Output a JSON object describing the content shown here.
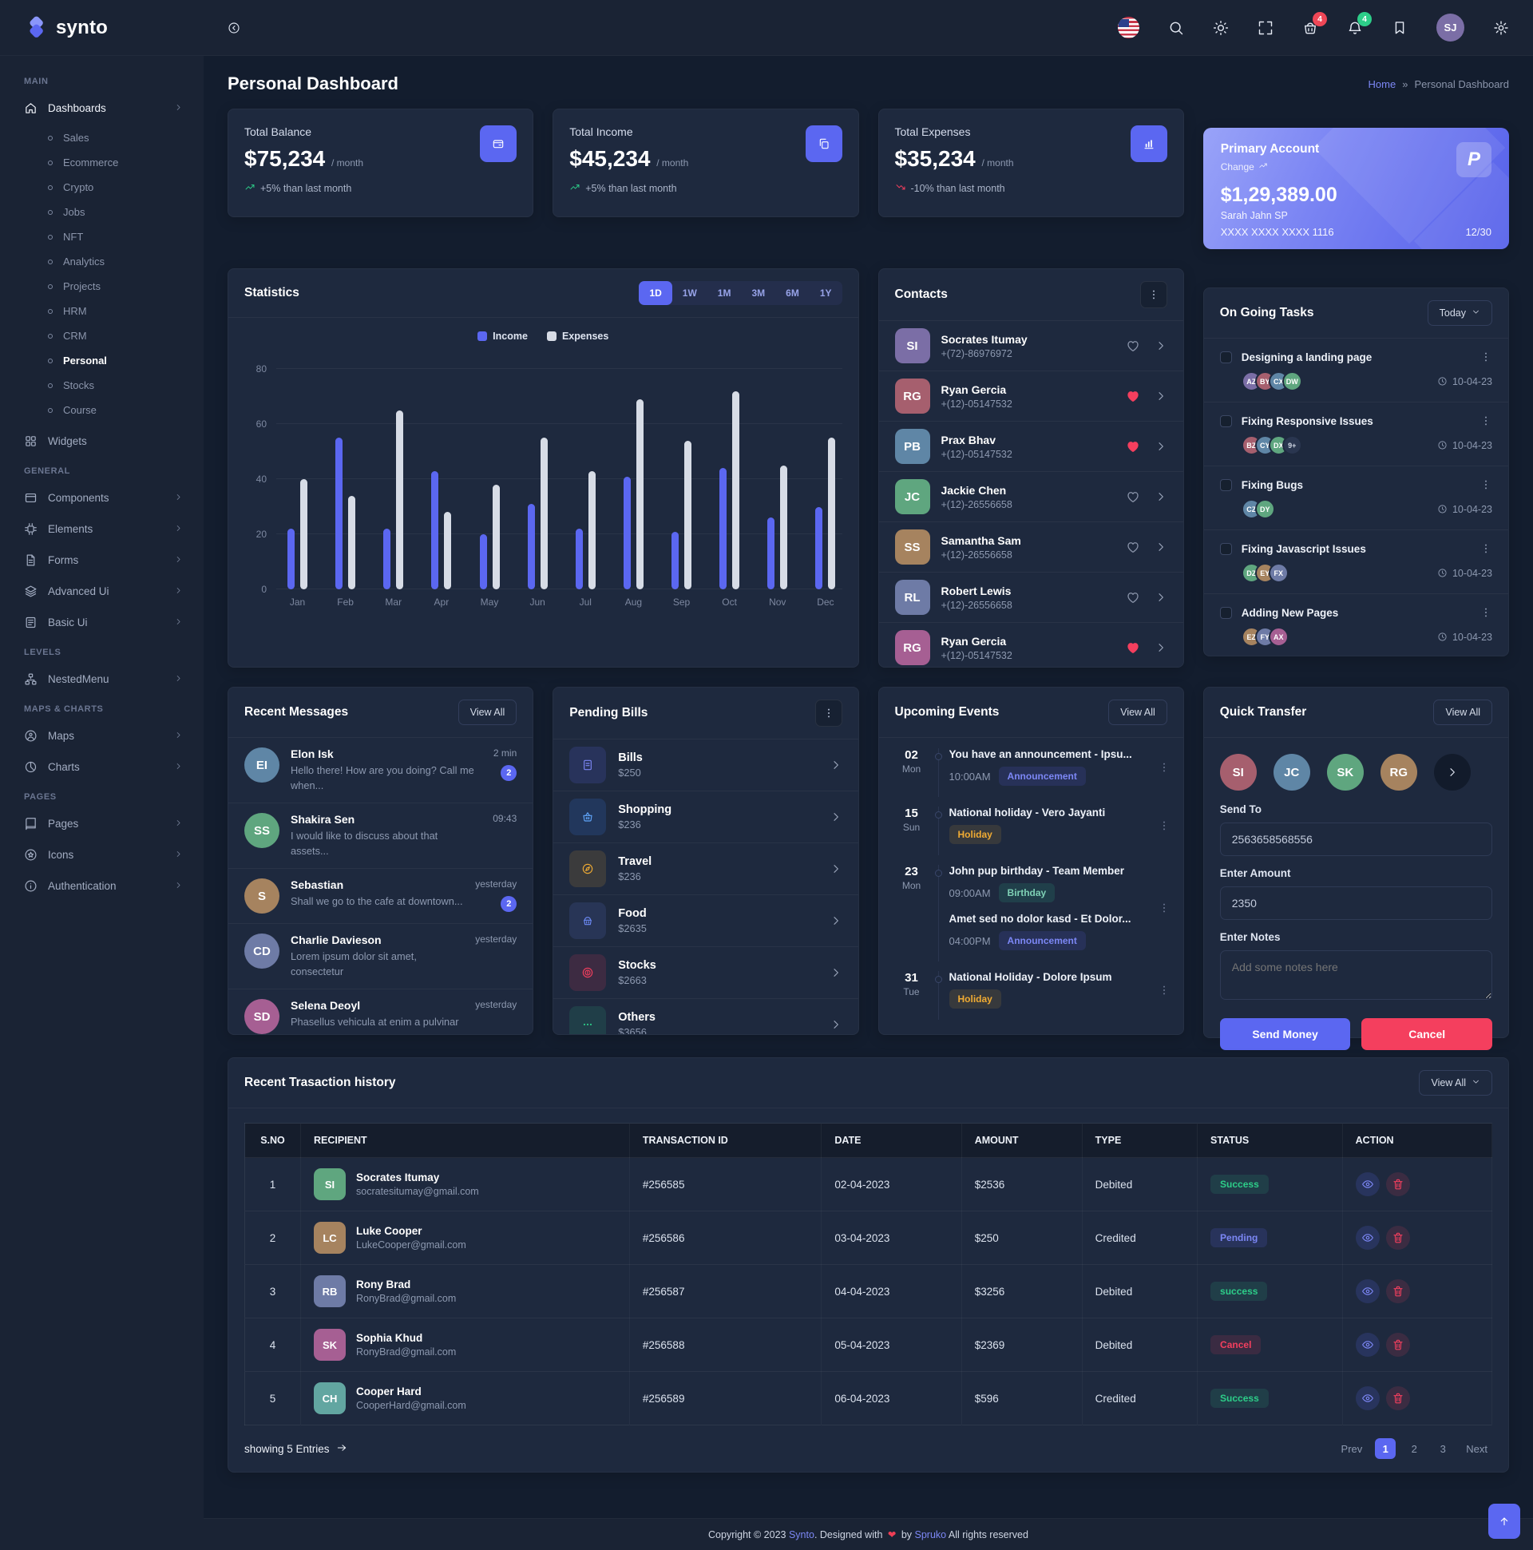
{
  "brand": {
    "name": "synto"
  },
  "header": {
    "cart_badge": "4",
    "bell_badge": "4",
    "user_initials": "SJ"
  },
  "sidebar": {
    "sections": [
      {
        "label": "MAIN",
        "items": [
          {
            "label": "Dashboards",
            "icon": "home-icon",
            "chevron": true,
            "expanded": true,
            "children": [
              {
                "label": "Sales"
              },
              {
                "label": "Ecommerce"
              },
              {
                "label": "Crypto"
              },
              {
                "label": "Jobs"
              },
              {
                "label": "NFT"
              },
              {
                "label": "Analytics"
              },
              {
                "label": "Projects"
              },
              {
                "label": "HRM"
              },
              {
                "label": "CRM"
              },
              {
                "label": "Personal",
                "active": true
              },
              {
                "label": "Stocks"
              },
              {
                "label": "Course"
              }
            ]
          },
          {
            "label": "Widgets",
            "icon": "grid-icon"
          }
        ]
      },
      {
        "label": "GENERAL",
        "items": [
          {
            "label": "Components",
            "icon": "window-icon",
            "chevron": true
          },
          {
            "label": "Elements",
            "icon": "cpu-icon",
            "chevron": true
          },
          {
            "label": "Forms",
            "icon": "file-text-icon",
            "chevron": true
          },
          {
            "label": "Advanced Ui",
            "icon": "layers-icon",
            "chevron": true
          },
          {
            "label": "Basic Ui",
            "icon": "doc-list-icon",
            "chevron": true
          }
        ]
      },
      {
        "label": "LEVELS",
        "items": [
          {
            "label": "NestedMenu",
            "icon": "tree-icon",
            "chevron": true
          }
        ]
      },
      {
        "label": "MAPS & CHARTS",
        "items": [
          {
            "label": "Maps",
            "icon": "map-pin-icon",
            "chevron": true
          },
          {
            "label": "Charts",
            "icon": "chart-pie-icon",
            "chevron": true
          }
        ]
      },
      {
        "label": "PAGES",
        "items": [
          {
            "label": "Pages",
            "icon": "book-icon",
            "chevron": true
          },
          {
            "label": "Icons",
            "icon": "icons-icon",
            "chevron": true
          },
          {
            "label": "Authentication",
            "icon": "info-circle-icon",
            "chevron": true
          }
        ]
      }
    ]
  },
  "page": {
    "title": "Personal Dashboard",
    "breadcrumb": {
      "home": "Home",
      "separator": "»",
      "current": "Personal Dashboard"
    }
  },
  "stats": [
    {
      "label": "Total Balance",
      "value": "$75,234",
      "per": "/ month",
      "change": "+5% than last month",
      "dir": "up",
      "icon": "wallet-icon"
    },
    {
      "label": "Total Income",
      "value": "$45,234",
      "per": "/ month",
      "change": "+5% than last month",
      "dir": "up",
      "icon": "copy-icon"
    },
    {
      "label": "Total Expenses",
      "value": "$35,234",
      "per": "/ month",
      "change": "-10% than last month",
      "dir": "down",
      "icon": "bar-chart-icon"
    }
  ],
  "primary_account": {
    "title": "Primary Account",
    "change_label": "Change",
    "amount": "$1,29,389.00",
    "holder": "Sarah Jahn SP",
    "number": "XXXX XXXX XXXX 1116",
    "expiry": "12/30",
    "icon": "paypal-icon",
    "paypal_letter": "P"
  },
  "statistics": {
    "title": "Statistics",
    "ranges": [
      "1D",
      "1W",
      "1M",
      "3M",
      "6M",
      "1Y"
    ],
    "active_range": "1D"
  },
  "chart_data": {
    "type": "bar",
    "title": "Statistics",
    "categories": [
      "Jan",
      "Feb",
      "Mar",
      "Apr",
      "May",
      "Jun",
      "Jul",
      "Aug",
      "Sep",
      "Oct",
      "Nov",
      "Dec"
    ],
    "series": [
      {
        "name": "Income",
        "color": "#5b67f1",
        "values": [
          22,
          55,
          22,
          43,
          20,
          31,
          22,
          41,
          21,
          44,
          26,
          30
        ]
      },
      {
        "name": "Expenses",
        "color": "#d7dce6",
        "values": [
          40,
          34,
          65,
          28,
          38,
          55,
          43,
          69,
          54,
          72,
          45,
          55
        ]
      }
    ],
    "xlabel": "",
    "ylabel": "",
    "ylim": [
      0,
      80
    ],
    "yticks": [
      0,
      20,
      40,
      60,
      80
    ],
    "grid": true,
    "legend_position": "top"
  },
  "contacts": {
    "title": "Contacts",
    "items": [
      {
        "name": "Socrates Itumay",
        "phone": "+(72)-86976972",
        "favorite": false
      },
      {
        "name": "Ryan Gercia",
        "phone": "+(12)-05147532",
        "favorite": true
      },
      {
        "name": "Prax Bhav",
        "phone": "+(12)-05147532",
        "favorite": true
      },
      {
        "name": "Jackie Chen",
        "phone": "+(12)-26556658",
        "favorite": false
      },
      {
        "name": "Samantha Sam",
        "phone": "+(12)-26556658",
        "favorite": false
      },
      {
        "name": "Robert Lewis",
        "phone": "+(12)-26556658",
        "favorite": false
      },
      {
        "name": "Ryan Gercia",
        "phone": "+(12)-05147532",
        "favorite": true
      }
    ]
  },
  "tasks": {
    "title": "On Going Tasks",
    "filter_label": "Today",
    "items": [
      {
        "label": "Designing a landing page",
        "date": "10-04-23",
        "avatars": 4,
        "more": ""
      },
      {
        "label": "Fixing Responsive Issues",
        "date": "10-04-23",
        "avatars": 3,
        "more": "9+"
      },
      {
        "label": "Fixing Bugs",
        "date": "10-04-23",
        "avatars": 2,
        "more": ""
      },
      {
        "label": "Fixing Javascript Issues",
        "date": "10-04-23",
        "avatars": 3,
        "more": ""
      },
      {
        "label": "Adding New Pages",
        "date": "10-04-23",
        "avatars": 3,
        "more": ""
      }
    ]
  },
  "messages": {
    "title": "Recent Messages",
    "view_all": "View All",
    "items": [
      {
        "name": "Elon Isk",
        "text": "Hello there! How are you doing? Call me when...",
        "time": "2 min",
        "badge": "2"
      },
      {
        "name": "Shakira Sen",
        "text": "I would like to discuss about that assets...",
        "time": "09:43",
        "badge": ""
      },
      {
        "name": "Sebastian",
        "text": "Shall we go to the cafe at downtown...",
        "time": "yesterday",
        "badge": "2"
      },
      {
        "name": "Charlie Davieson",
        "text": "Lorem ipsum dolor sit amet, consectetur",
        "time": "yesterday",
        "badge": ""
      },
      {
        "name": "Selena Deoyl",
        "text": "Phasellus vehicula at enim a pulvinar",
        "time": "yesterday",
        "badge": ""
      }
    ]
  },
  "bills": {
    "title": "Pending Bills",
    "items": [
      {
        "label": "Bills",
        "amount": "$250",
        "icon": "file-icon",
        "color": "indigo"
      },
      {
        "label": "Shopping",
        "amount": "$236",
        "icon": "basket-icon",
        "color": "blue"
      },
      {
        "label": "Travel",
        "amount": "$236",
        "icon": "compass-icon",
        "color": "yellow"
      },
      {
        "label": "Food",
        "amount": "$2635",
        "icon": "cupcake-icon",
        "color": "blue2"
      },
      {
        "label": "Stocks",
        "amount": "$2663",
        "icon": "stock-icon",
        "color": "red"
      },
      {
        "label": "Others",
        "amount": "$3656",
        "icon": "dots-icon",
        "color": "green"
      }
    ]
  },
  "events": {
    "title": "Upcoming Events",
    "view_all": "View All",
    "groups": [
      {
        "day": "02",
        "weekday": "Mon",
        "entries": [
          {
            "title": "You have an announcement - Ipsu...",
            "time": "10:00AM",
            "badge": "Announcement",
            "badge_type": "announcement"
          }
        ]
      },
      {
        "day": "15",
        "weekday": "Sun",
        "entries": [
          {
            "title": "National holiday - Vero Jayanti",
            "time": "",
            "badge": "Holiday",
            "badge_type": "holiday"
          }
        ]
      },
      {
        "day": "23",
        "weekday": "Mon",
        "entries": [
          {
            "title": "John pup birthday - Team Member",
            "time": "09:00AM",
            "badge": "Birthday",
            "badge_type": "birthday"
          },
          {
            "title": "Amet sed no dolor kasd - Et Dolor...",
            "time": "04:00PM",
            "badge": "Announcement",
            "badge_type": "announcement"
          }
        ]
      },
      {
        "day": "31",
        "weekday": "Tue",
        "entries": [
          {
            "title": "National Holiday - Dolore Ipsum",
            "time": "",
            "badge": "Holiday",
            "badge_type": "holiday"
          }
        ]
      }
    ]
  },
  "transfer": {
    "title": "Quick Transfer",
    "view_all": "View All",
    "avatars": [
      "Socrates Itumay",
      "Jackie Chen",
      "Sophia Khud",
      "Ryan Gercia"
    ],
    "send_to_label": "Send To",
    "send_to_value": "2563658568556",
    "amount_label": "Enter Amount",
    "amount_value": "2350",
    "notes_label": "Enter Notes",
    "notes_placeholder": "Add some notes here",
    "send_label": "Send Money",
    "cancel_label": "Cancel"
  },
  "transactions": {
    "title": "Recent Trasaction history",
    "view_all": "View All",
    "columns": [
      "S.NO",
      "RECIPIENT",
      "TRANSACTION ID",
      "DATE",
      "AMOUNT",
      "TYPE",
      "STATUS",
      "ACTION"
    ],
    "rows": [
      {
        "sno": "1",
        "name": "Socrates Itumay",
        "email": "socratesitumay@gmail.com",
        "tid": "#256585",
        "date": "02-04-2023",
        "amount": "$2536",
        "type": "Debited",
        "status": "Success",
        "status_color": "green"
      },
      {
        "sno": "2",
        "name": "Luke Cooper",
        "email": "LukeCooper@gmail.com",
        "tid": "#256586",
        "date": "03-04-2023",
        "amount": "$250",
        "type": "Credited",
        "status": "Pending",
        "status_color": "indigo"
      },
      {
        "sno": "3",
        "name": "Rony Brad",
        "email": "RonyBrad@gmail.com",
        "tid": "#256587",
        "date": "04-04-2023",
        "amount": "$3256",
        "type": "Debited",
        "status": "success",
        "status_color": "green"
      },
      {
        "sno": "4",
        "name": "Sophia Khud",
        "email": "RonyBrad@gmail.com",
        "tid": "#256588",
        "date": "05-04-2023",
        "amount": "$2369",
        "type": "Debited",
        "status": "Cancel",
        "status_color": "red"
      },
      {
        "sno": "5",
        "name": "Cooper Hard",
        "email": "CooperHard@gmail.com",
        "tid": "#256589",
        "date": "06-04-2023",
        "amount": "$596",
        "type": "Credited",
        "status": "Success",
        "status_color": "green"
      }
    ],
    "footer": {
      "showing": "showing 5 Entries",
      "prev": "Prev",
      "pages": [
        "1",
        "2",
        "3"
      ],
      "active_page": "1",
      "next": "Next"
    }
  },
  "footer": {
    "prefix": "Copyright © 2023 ",
    "brand": "Synto",
    "mid": ". Designed with ",
    "heart": "❤",
    "by": " by ",
    "designer": "Spruko",
    "suffix": " All rights reserved"
  },
  "colors": {
    "primary": "#5b67f1",
    "success": "#2dce89",
    "danger": "#f43f5e",
    "warning": "#f0ab33",
    "income_bar": "#5b67f1",
    "expense_bar": "#d7dce6"
  }
}
